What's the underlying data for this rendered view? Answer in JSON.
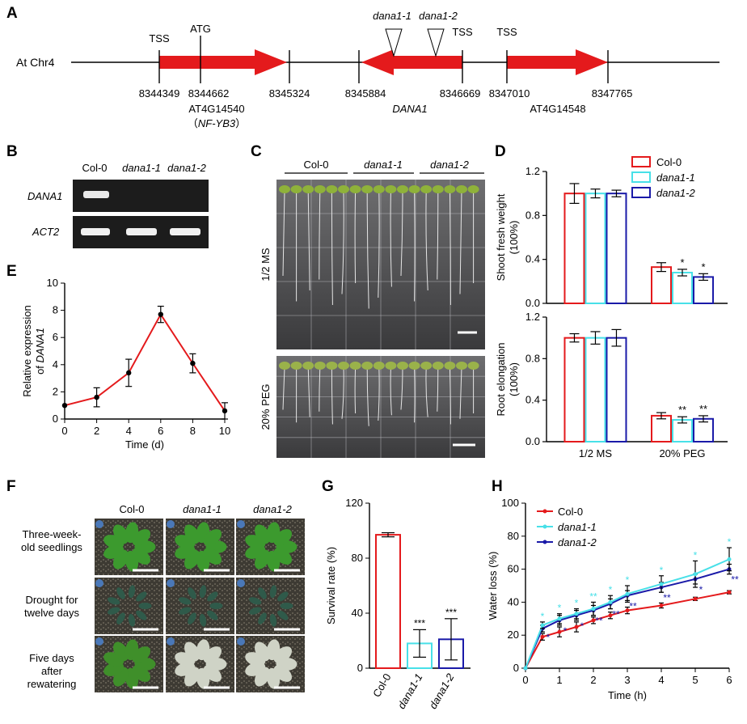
{
  "panel_labels": {
    "a": "A",
    "b": "B",
    "c": "C",
    "d": "D",
    "e": "E",
    "f": "F",
    "g": "G",
    "h": "H"
  },
  "gene_map": {
    "chromosome": "At Chr4",
    "tss": [
      "TSS",
      "TSS",
      "TSS"
    ],
    "atg": "ATG",
    "mutants": [
      "dana1-1",
      "dana1-2"
    ],
    "coordinates": [
      "8344349",
      "8344662",
      "8345324",
      "8345884",
      "8346669",
      "8347010",
      "8347765"
    ],
    "genes": {
      "left_locus": "AT4G14540",
      "left_alias": "NF-YB3",
      "left_alias_open": "（",
      "left_alias_close": "）",
      "middle": "DANA1",
      "right_locus": "AT4G14548"
    },
    "arrow_color": "#e41a1c"
  },
  "gel": {
    "lanes": [
      "Col-0",
      "dana1-1",
      "dana1-2"
    ],
    "rows": [
      "DANA1",
      "ACT2"
    ]
  },
  "plates": {
    "groups": [
      "Col-0",
      "dana1-1",
      "dana1-2"
    ],
    "conditions": [
      "1/2 MS",
      "20% PEG"
    ]
  },
  "chart_data": [
    {
      "id": "D-top",
      "type": "bar",
      "ylabel": "Shoot fresh weight",
      "ylabel_unit": "(100%)",
      "categories": [
        "1/2 MS",
        "20% PEG"
      ],
      "ylim": [
        0,
        1.2
      ],
      "yticks": [
        "0.0",
        "0.4",
        "0.8",
        "1.2"
      ],
      "legend_position": "top-right",
      "series": [
        {
          "name": "Col-0",
          "color": "#e41a1c",
          "values": [
            1.0,
            0.33
          ],
          "errors": [
            0.09,
            0.04
          ],
          "sig": [
            "",
            ""
          ]
        },
        {
          "name": "dana1-1",
          "color": "#48e0e8",
          "values": [
            1.0,
            0.28
          ],
          "errors": [
            0.04,
            0.03
          ],
          "sig": [
            "",
            "*"
          ]
        },
        {
          "name": "dana1-2",
          "color": "#1a1aa8",
          "values": [
            1.0,
            0.24
          ],
          "errors": [
            0.03,
            0.03
          ],
          "sig": [
            "",
            "*"
          ]
        }
      ]
    },
    {
      "id": "D-bottom",
      "type": "bar",
      "ylabel": "Root elongation",
      "ylabel_unit": "(100%)",
      "categories": [
        "1/2 MS",
        "20% PEG"
      ],
      "ylim": [
        0,
        1.2
      ],
      "yticks": [
        "0.0",
        "0.4",
        "0.8",
        "1.2"
      ],
      "series": [
        {
          "name": "Col-0",
          "color": "#e41a1c",
          "values": [
            1.0,
            0.25
          ],
          "errors": [
            0.04,
            0.03
          ],
          "sig": [
            "",
            ""
          ]
        },
        {
          "name": "dana1-1",
          "color": "#48e0e8",
          "values": [
            1.0,
            0.21
          ],
          "errors": [
            0.06,
            0.03
          ],
          "sig": [
            "",
            "**"
          ]
        },
        {
          "name": "dana1-2",
          "color": "#1a1aa8",
          "values": [
            1.0,
            0.22
          ],
          "errors": [
            0.08,
            0.03
          ],
          "sig": [
            "",
            "**"
          ]
        }
      ]
    },
    {
      "id": "E",
      "type": "line",
      "xlabel": "Time (d)",
      "ylabel_line1": "Relative expression",
      "ylabel_line2_prefix": "of ",
      "ylabel_line2_gene": "DANA1",
      "xlim": [
        0,
        10
      ],
      "ylim": [
        0,
        10
      ],
      "xticks": [
        "0",
        "2",
        "4",
        "6",
        "8",
        "10"
      ],
      "yticks": [
        "0",
        "2",
        "4",
        "6",
        "8",
        "10"
      ],
      "color": "#e41a1c",
      "x": [
        0,
        2,
        4,
        6,
        8,
        10
      ],
      "y": [
        1.0,
        1.6,
        3.4,
        7.7,
        4.1,
        0.6
      ],
      "errors": [
        0.0,
        0.7,
        1.0,
        0.6,
        0.7,
        0.6
      ]
    },
    {
      "id": "G",
      "type": "bar",
      "ylabel": "Survival rate (%)",
      "categories": [
        "Col-0",
        "dana1-1",
        "dana1-2"
      ],
      "ylim": [
        0,
        120
      ],
      "yticks": [
        "0",
        "40",
        "80",
        "120"
      ],
      "colors": [
        "#e41a1c",
        "#48e0e8",
        "#1a1aa8"
      ],
      "values": [
        97,
        18,
        21
      ],
      "errors": [
        1.5,
        10,
        15
      ],
      "sig": [
        "",
        "***",
        "***"
      ]
    },
    {
      "id": "H",
      "type": "line",
      "xlabel": "Time (h)",
      "ylabel": "Water loss (%)",
      "xlim": [
        0,
        6
      ],
      "ylim": [
        0,
        100
      ],
      "xticks": [
        "0",
        "1",
        "2",
        "3",
        "4",
        "5",
        "6"
      ],
      "yticks": [
        "0",
        "20",
        "40",
        "60",
        "80",
        "100"
      ],
      "x": [
        0,
        0.5,
        1,
        1.5,
        2,
        2.5,
        3,
        4,
        5,
        6
      ],
      "legend_position": "top-left",
      "series": [
        {
          "name": "Col-0",
          "color": "#e41a1c",
          "y": [
            0,
            19,
            22,
            25,
            29,
            32,
            35,
            38,
            42,
            46
          ],
          "errors": [
            0,
            2,
            3,
            3,
            2,
            2,
            2,
            1.5,
            1,
            1
          ],
          "sig": []
        },
        {
          "name": "dana1-1",
          "color": "#48e0e8",
          "y": [
            0,
            26,
            30,
            33,
            36,
            40,
            45,
            51,
            57,
            66
          ],
          "errors": [
            0,
            2,
            3,
            3,
            4,
            4,
            5,
            5,
            8,
            7
          ],
          "sig": [
            "",
            "*",
            "*",
            "*",
            "**",
            "*",
            "*",
            "*",
            "*",
            "*"
          ]
        },
        {
          "name": "dana1-2",
          "color": "#1a1aa8",
          "y": [
            0,
            24,
            29,
            32,
            35,
            39,
            44,
            49,
            54,
            60
          ],
          "errors": [
            0,
            2,
            3,
            3,
            3,
            3,
            3,
            3,
            3,
            3
          ],
          "sig": [
            "",
            "*",
            "*",
            "*",
            "**",
            "**",
            "**",
            "**",
            "*",
            "**"
          ]
        }
      ]
    }
  ],
  "drought": {
    "columns": [
      "Col-0",
      "dana1-1",
      "dana1-2"
    ],
    "rows": [
      {
        "line1": "Three-week-",
        "line2": "old seedlings"
      },
      {
        "line1": "Drought for",
        "line2": "twelve days"
      },
      {
        "line1": "Five days",
        "line2": "after",
        "line3": "rewatering"
      }
    ]
  }
}
